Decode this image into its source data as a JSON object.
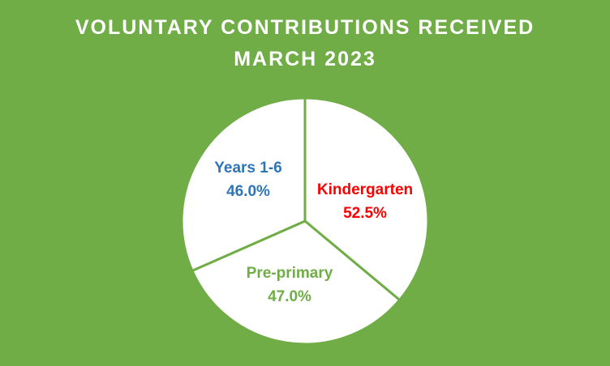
{
  "colors": {
    "background": "#70ad47",
    "pie_fill": "#ffffff",
    "separator": "#70ad47"
  },
  "chart_data": {
    "type": "pie",
    "title": "VOLUNTARY CONTRIBUTIONS RECEIVED",
    "subtitle": "MARCH 2023",
    "slices": [
      {
        "name": "Kindergarten",
        "value": 52.5,
        "value_label": "52.5%",
        "color": "#ff0000"
      },
      {
        "name": "Pre-primary",
        "value": 47.0,
        "value_label": "47.0%",
        "color": "#70ad47"
      },
      {
        "name": "Years 1-6",
        "value": 46.0,
        "value_label": "46.0%",
        "color": "#2e75b6"
      }
    ]
  }
}
